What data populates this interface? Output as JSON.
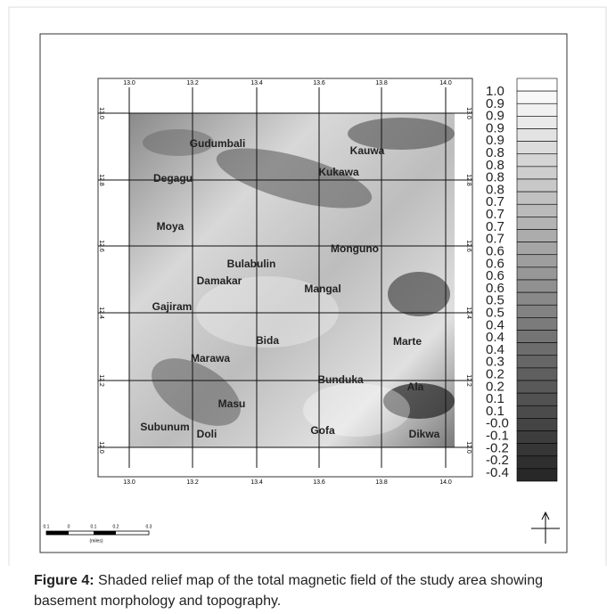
{
  "figure": {
    "x_ticks": [
      "13.0",
      "13.2",
      "13.4",
      "13.6",
      "13.8",
      "14.0"
    ],
    "y_ticks": [
      "13.0",
      "12.8",
      "12.6",
      "12.4",
      "12.2",
      "12.0"
    ],
    "places": [
      "Gudumbali",
      "Kauwa",
      "Kukawa",
      "Degagu",
      "Moya",
      "Monguno",
      "Bulabulin",
      "Damakar",
      "Mangal",
      "Gajiram",
      "Bida",
      "Marte",
      "Marawa",
      "Bunduka",
      "Ala",
      "Masu",
      "Subunum",
      "Doli",
      "Gofa",
      "Dikwa"
    ],
    "colorbar_labels": [
      "1.0",
      "0.9",
      "0.9",
      "0.9",
      "0.9",
      "0.8",
      "0.8",
      "0.8",
      "0.8",
      "0.7",
      "0.7",
      "0.7",
      "0.7",
      "0.6",
      "0.6",
      "0.6",
      "0.6",
      "0.5",
      "0.5",
      "0.4",
      "0.4",
      "0.4",
      "0.3",
      "0.2",
      "0.2",
      "0.1",
      "0.1",
      "-0.0",
      "-0.1",
      "-0.2",
      "-0.2",
      "-0.4"
    ],
    "scale_labels": [
      "0.1",
      "0",
      "0.1",
      "0.2",
      "0.3"
    ],
    "scale_unit": "(miles)"
  },
  "caption": {
    "label": "Figure 4:",
    "text": "Shaded relief map of the total magnetic field of the study area showing basement morphology and topography."
  }
}
